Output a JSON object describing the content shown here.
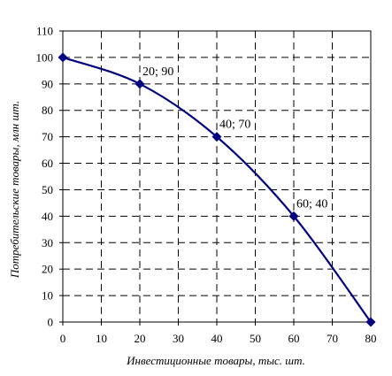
{
  "chart_data": {
    "type": "line",
    "xlabel": "Инвестиционные товары, тыс. шт.",
    "ylabel": "Потребительские товары, млн шт.",
    "xlim": [
      0,
      80
    ],
    "ylim": [
      0,
      110
    ],
    "xticks": [
      "0",
      "10",
      "20",
      "30",
      "40",
      "50",
      "60",
      "70",
      "80"
    ],
    "yticks": [
      "0",
      "10",
      "20",
      "30",
      "40",
      "50",
      "60",
      "70",
      "80",
      "90",
      "100",
      "110"
    ],
    "grid": "dashed",
    "legend": "none",
    "line_color": "#000080",
    "series": [
      {
        "points": [
          {
            "x": 0,
            "y": 100
          },
          {
            "x": 20,
            "y": 90
          },
          {
            "x": 40,
            "y": 70
          },
          {
            "x": 60,
            "y": 40
          },
          {
            "x": 80,
            "y": 0
          }
        ]
      }
    ],
    "point_labels": [
      {
        "x": 20,
        "y": 90,
        "text": "20; 90"
      },
      {
        "x": 40,
        "y": 70,
        "text": "40; 70"
      },
      {
        "x": 60,
        "y": 40,
        "text": "60; 40"
      }
    ]
  }
}
